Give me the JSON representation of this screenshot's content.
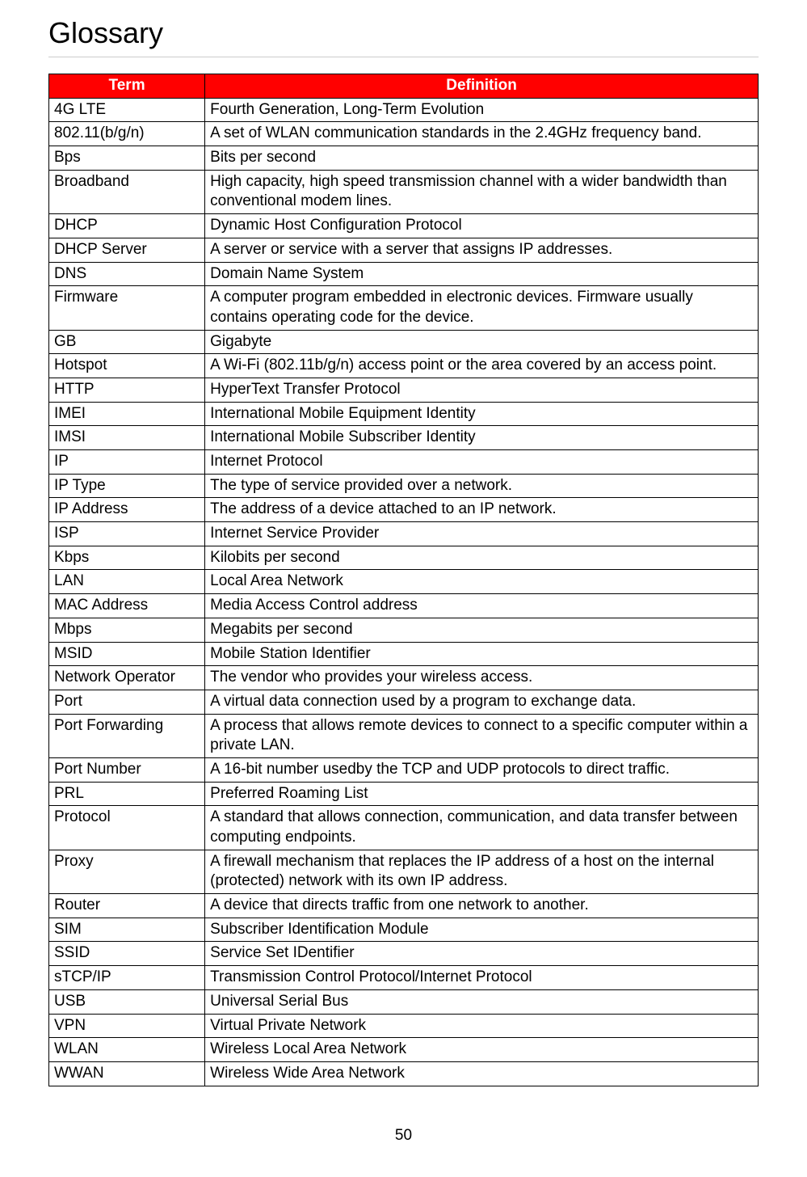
{
  "page": {
    "title": "Glossary",
    "page_number": "50"
  },
  "table": {
    "headers": {
      "term": "Term",
      "definition": "Definition"
    },
    "header_bg": "#ff0000",
    "header_fg": "#ffffff",
    "border_color": "#000000",
    "rows": [
      {
        "term": "4G LTE",
        "definition": "Fourth Generation, Long-Term Evolution"
      },
      {
        "term": "802.11(b/g/n)",
        "definition": "A set of WLAN communication standards in the 2.4GHz frequency band."
      },
      {
        "term": "Bps",
        "definition": "Bits per second"
      },
      {
        "term": "Broadband",
        "definition": "High capacity, high speed transmission channel with a wider bandwidth than conventional modem lines."
      },
      {
        "term": "DHCP",
        "definition": "Dynamic Host Configuration Protocol"
      },
      {
        "term": "DHCP Server",
        "definition": "A server or service with a server that assigns IP addresses."
      },
      {
        "term": "DNS",
        "definition": "Domain Name System"
      },
      {
        "term": "Firmware",
        "definition": "A computer program embedded in electronic devices. Firmware usually contains operating code for the device."
      },
      {
        "term": "GB",
        "definition": "Gigabyte"
      },
      {
        "term": "Hotspot",
        "definition": "A Wi-Fi (802.11b/g/n) access point or the area covered by an access point."
      },
      {
        "term": "HTTP",
        "definition": "HyperText Transfer Protocol"
      },
      {
        "term": "IMEI",
        "definition": "International Mobile Equipment Identity"
      },
      {
        "term": "IMSI",
        "definition": "International Mobile Subscriber Identity"
      },
      {
        "term": "IP",
        "definition": "Internet Protocol"
      },
      {
        "term": "IP Type",
        "definition": "The type of service provided over a network."
      },
      {
        "term": "IP Address",
        "definition": "The address of a device attached to an IP network."
      },
      {
        "term": "ISP",
        "definition": "Internet Service Provider"
      },
      {
        "term": "Kbps",
        "definition": "Kilobits per second"
      },
      {
        "term": "LAN",
        "definition": "Local Area Network"
      },
      {
        "term": "MAC Address",
        "definition": "Media Access Control address"
      },
      {
        "term": "Mbps",
        "definition": "Megabits per second"
      },
      {
        "term": "MSID",
        "definition": "Mobile Station Identifier"
      },
      {
        "term": "Network Operator",
        "definition": "The vendor who provides your wireless access."
      },
      {
        "term": "Port",
        "definition": "A virtual data connection used by a program to exchange data."
      },
      {
        "term": "Port Forwarding",
        "definition": "A process that allows remote devices to connect to a specific computer within a private LAN."
      },
      {
        "term": "Port Number",
        "definition": "A 16-bit number usedby the TCP and UDP protocols to direct traffic."
      },
      {
        "term": "PRL",
        "definition": "Preferred Roaming List"
      },
      {
        "term": "Protocol",
        "definition": "A standard that allows connection, communication, and data transfer between computing endpoints."
      },
      {
        "term": "Proxy",
        "definition": "A firewall mechanism that replaces the IP address of a host on the internal (protected) network with its own IP address."
      },
      {
        "term": "Router",
        "definition": "A device that directs traffic from one network to another."
      },
      {
        "term": "SIM",
        "definition": "Subscriber Identification Module"
      },
      {
        "term": "SSID",
        "definition": "Service Set IDentifier"
      },
      {
        "term": "sTCP/IP",
        "definition": "Transmission Control Protocol/Internet Protocol"
      },
      {
        "term": "USB",
        "definition": "Universal Serial Bus"
      },
      {
        "term": "VPN",
        "definition": "Virtual Private Network"
      },
      {
        "term": "WLAN",
        "definition": "Wireless Local Area Network"
      },
      {
        "term": "WWAN",
        "definition": "Wireless Wide Area Network"
      }
    ]
  }
}
